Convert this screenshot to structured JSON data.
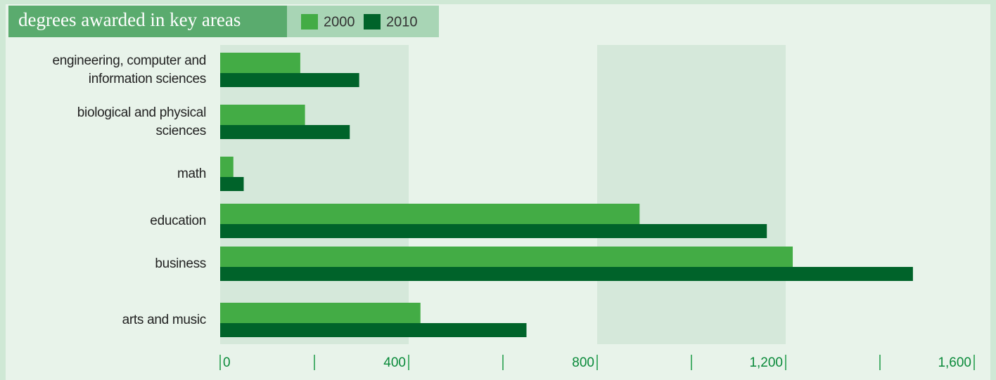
{
  "chart_data": {
    "type": "bar",
    "orientation": "horizontal",
    "title": "degrees awarded in key areas",
    "categories": [
      "engineering, computer and information sciences",
      "biological and physical sciences",
      "math",
      "education",
      "business",
      "arts and music"
    ],
    "series": [
      {
        "name": "2000",
        "color": "#43ac45",
        "values": [
          170,
          180,
          28,
          890,
          1215,
          425
        ]
      },
      {
        "name": "2010",
        "color": "#00632a",
        "values": [
          295,
          275,
          50,
          1160,
          1470,
          650
        ]
      }
    ],
    "xlim": [
      0,
      1600
    ],
    "xticks": [
      0,
      400,
      {
        "value": 800,
        "label": "800"
      },
      {
        "value": 1200,
        "label": "1,200"
      },
      {
        "value": 1600,
        "label": "1,600"
      }
    ],
    "minor_xticks": [
      200,
      600,
      1000,
      1400
    ],
    "bands": true
  }
}
